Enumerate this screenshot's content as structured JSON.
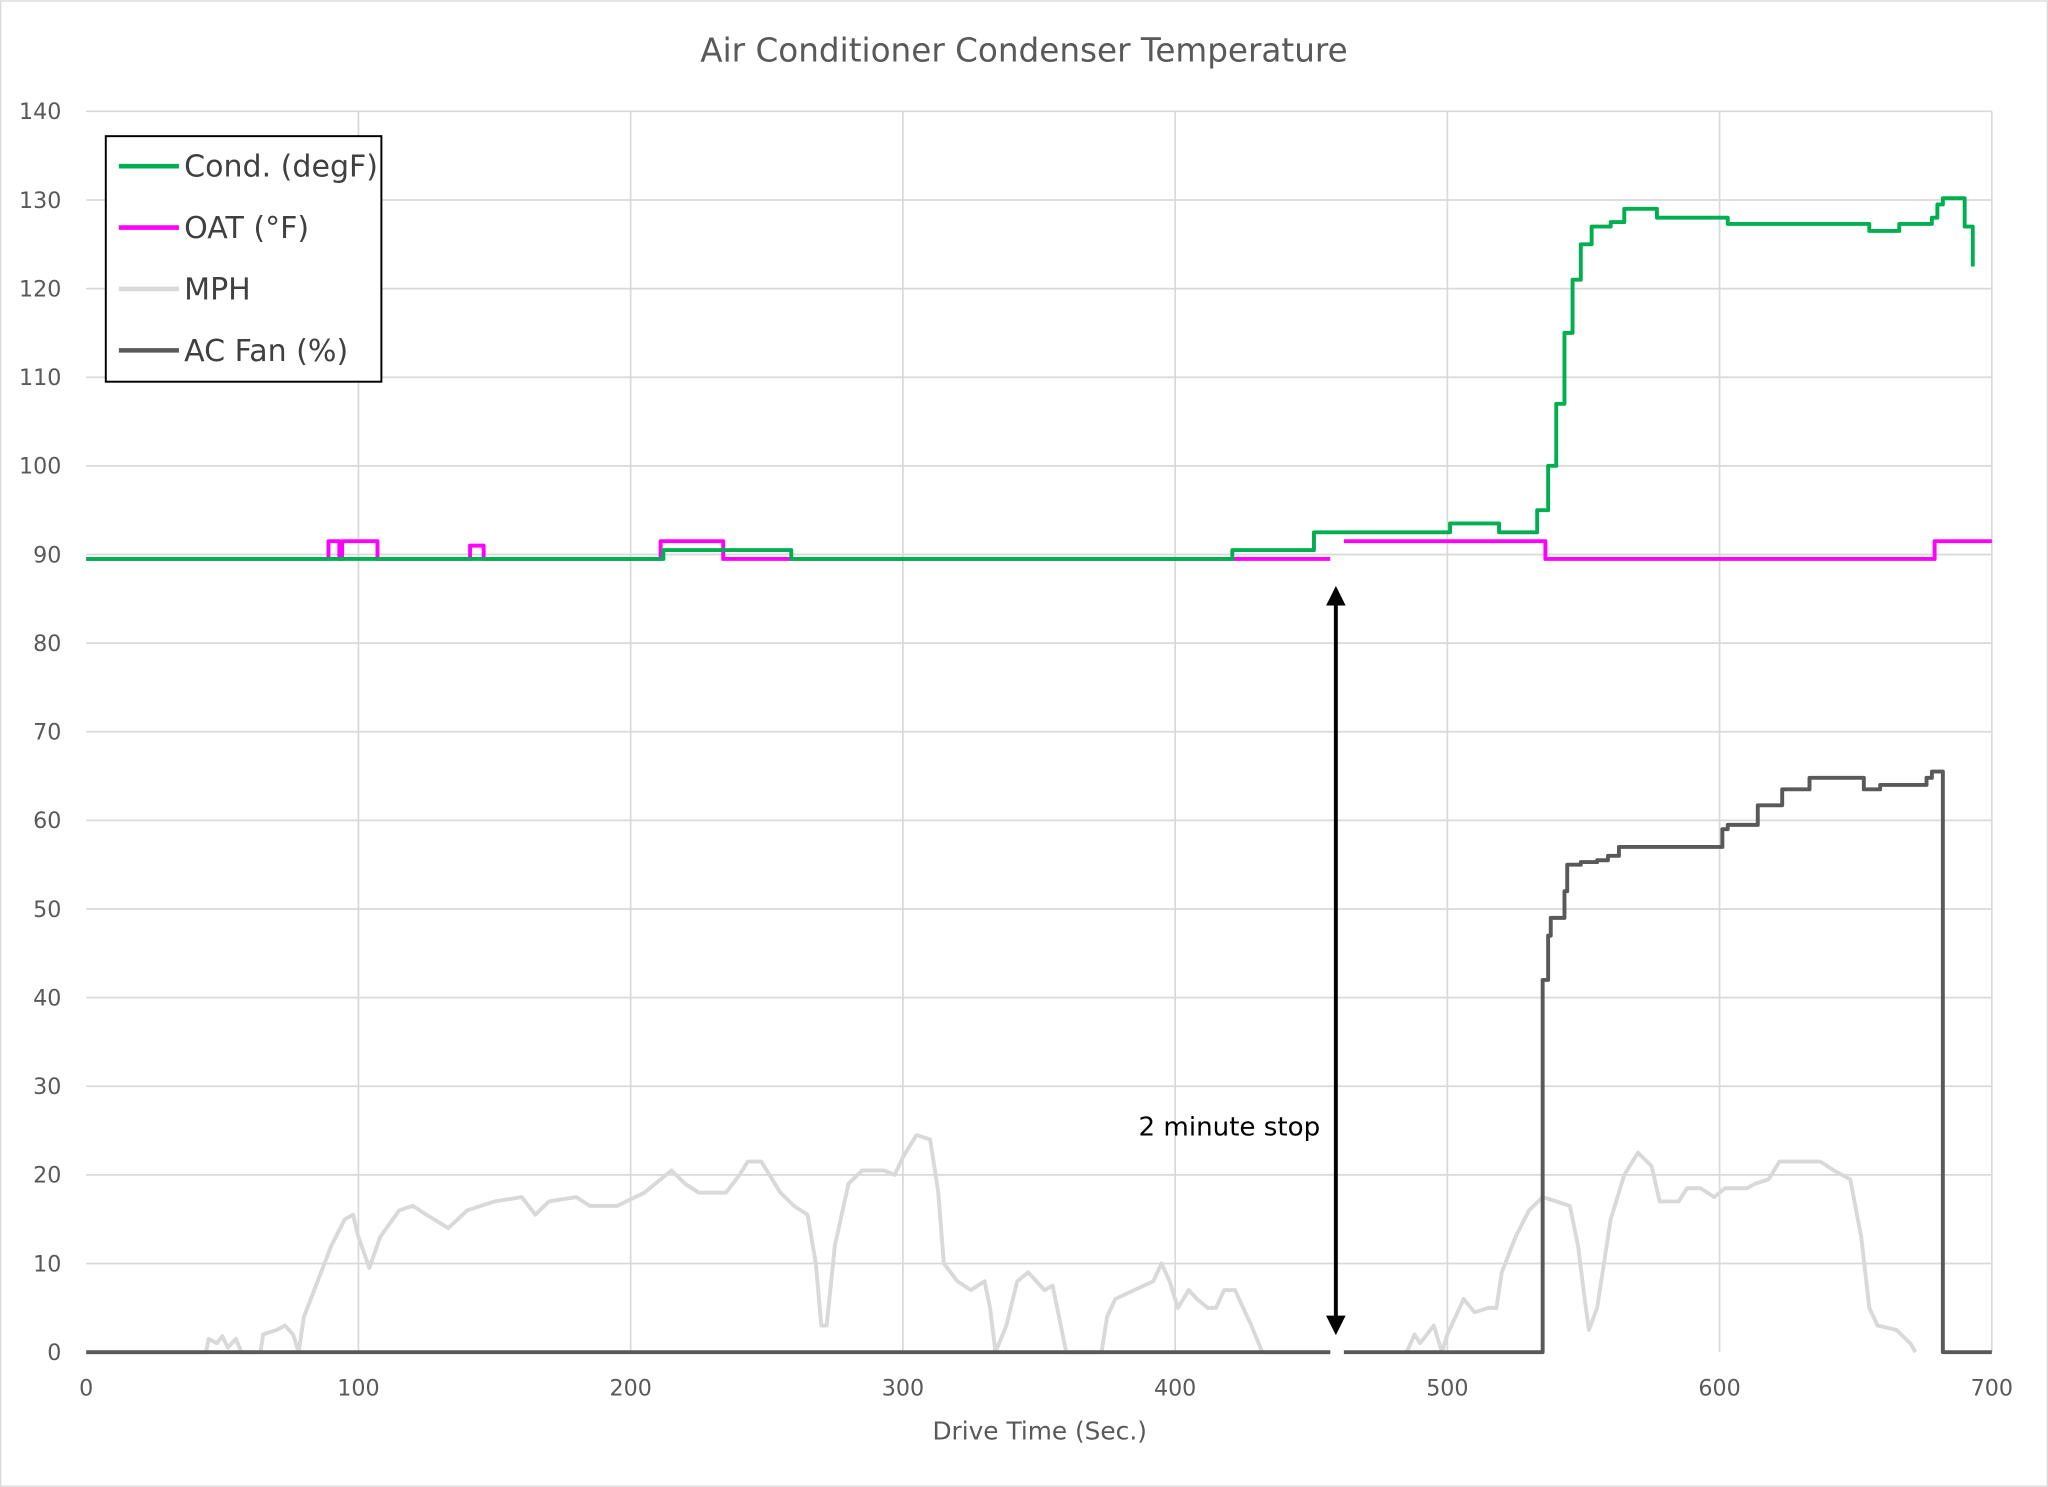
{
  "chart_data": {
    "type": "line",
    "title": "Air Conditioner Condenser Temperature",
    "xlabel": "Drive Time (Sec.)",
    "ylabel": "",
    "xlim": [
      0,
      700
    ],
    "ylim": [
      0,
      140
    ],
    "xticks": [
      0,
      100,
      200,
      300,
      400,
      500,
      600,
      700
    ],
    "yticks": [
      0,
      10,
      20,
      30,
      40,
      50,
      60,
      70,
      80,
      90,
      100,
      110,
      120,
      130,
      140
    ],
    "grid": true,
    "legend_position": "top-left",
    "annotation": {
      "text": "2 minute stop",
      "x": 460,
      "y_from": 0,
      "y_to": 86
    },
    "series": [
      {
        "name": "Cond. (degF)",
        "color": "#00B050",
        "step": true,
        "points": [
          [
            0,
            89.5
          ],
          [
            210,
            89.5
          ],
          [
            212,
            90.5
          ],
          [
            258,
            90.5
          ],
          [
            259,
            89.5
          ],
          [
            420,
            89.5
          ],
          [
            421,
            90.5
          ],
          [
            450,
            90.5
          ],
          [
            451,
            92.5
          ],
          [
            500,
            92.5
          ],
          [
            501,
            93.5
          ],
          [
            518,
            93.5
          ],
          [
            519,
            92.5
          ],
          [
            530,
            92.5
          ],
          [
            533,
            95
          ],
          [
            537,
            100
          ],
          [
            540,
            107
          ],
          [
            543,
            115
          ],
          [
            546,
            121
          ],
          [
            549,
            125
          ],
          [
            553,
            127
          ],
          [
            560,
            127.5
          ],
          [
            565,
            129
          ],
          [
            575,
            129
          ],
          [
            577,
            128
          ],
          [
            590,
            128
          ],
          [
            600,
            128
          ],
          [
            603,
            127.3
          ],
          [
            645,
            127.3
          ],
          [
            655,
            126.5
          ],
          [
            665,
            126.5
          ],
          [
            666,
            127.3
          ],
          [
            677,
            127.3
          ],
          [
            678,
            128
          ],
          [
            680,
            129.5
          ],
          [
            682,
            130.2
          ],
          [
            686,
            130.2
          ],
          [
            690,
            127
          ],
          [
            693,
            122.5
          ]
        ]
      },
      {
        "name": "OAT (°F)",
        "color": "#FF00FF",
        "step": true,
        "points": [
          [
            0,
            89.5
          ],
          [
            88,
            89.5
          ],
          [
            89,
            91.5
          ],
          [
            92,
            91.5
          ],
          [
            93,
            89.5
          ],
          [
            94,
            91.5
          ],
          [
            106,
            91.5
          ],
          [
            107,
            89.5
          ],
          [
            140,
            89.5
          ],
          [
            141,
            91
          ],
          [
            145,
            91
          ],
          [
            146,
            89.5
          ],
          [
            210,
            89.5
          ],
          [
            211,
            91.5
          ],
          [
            233,
            91.5
          ],
          [
            234,
            89.5
          ],
          [
            457,
            89.5
          ],
          null,
          [
            462,
            91.5
          ],
          [
            535,
            91.5
          ],
          [
            536,
            89.5
          ],
          [
            678,
            89.5
          ],
          [
            679,
            91.5
          ],
          [
            700,
            91.5
          ]
        ]
      },
      {
        "name": "MPH",
        "color": "#D9D9D9",
        "step": false,
        "points": [
          [
            0,
            0
          ],
          [
            44,
            0
          ],
          [
            45,
            1.5
          ],
          [
            48,
            1
          ],
          [
            50,
            1.8
          ],
          [
            52,
            0.5
          ],
          [
            55,
            1.5
          ],
          [
            57,
            0
          ],
          [
            64,
            0
          ],
          [
            65,
            2
          ],
          [
            70,
            2.5
          ],
          [
            73,
            3
          ],
          [
            76,
            2
          ],
          [
            78,
            0
          ],
          [
            80,
            4
          ],
          [
            85,
            8
          ],
          [
            90,
            12
          ],
          [
            95,
            15
          ],
          [
            98,
            15.5
          ],
          [
            100,
            13
          ],
          [
            104,
            9.5
          ],
          [
            108,
            13
          ],
          [
            115,
            16
          ],
          [
            120,
            16.5
          ],
          [
            125,
            15.5
          ],
          [
            133,
            14
          ],
          [
            140,
            16
          ],
          [
            150,
            17
          ],
          [
            160,
            17.5
          ],
          [
            165,
            15.5
          ],
          [
            170,
            17
          ],
          [
            180,
            17.5
          ],
          [
            185,
            16.5
          ],
          [
            195,
            16.5
          ],
          [
            205,
            18
          ],
          [
            215,
            20.5
          ],
          [
            220,
            19
          ],
          [
            225,
            18
          ],
          [
            235,
            18
          ],
          [
            240,
            20
          ],
          [
            243,
            21.5
          ],
          [
            248,
            21.5
          ],
          [
            255,
            18
          ],
          [
            260,
            16.5
          ],
          [
            265,
            15.5
          ],
          [
            268,
            10
          ],
          [
            270,
            3
          ],
          [
            272,
            3
          ],
          [
            275,
            12
          ],
          [
            280,
            19
          ],
          [
            285,
            20.5
          ],
          [
            293,
            20.5
          ],
          [
            297,
            20
          ],
          [
            300,
            22
          ],
          [
            305,
            24.5
          ],
          [
            310,
            24
          ],
          [
            313,
            18
          ],
          [
            315,
            10
          ],
          [
            320,
            8
          ],
          [
            325,
            7
          ],
          [
            330,
            8
          ],
          [
            332,
            5
          ],
          [
            334,
            0
          ],
          [
            338,
            3
          ],
          [
            342,
            8
          ],
          [
            346,
            9
          ],
          [
            352,
            7
          ],
          [
            355,
            7.5
          ],
          [
            358,
            3
          ],
          [
            360,
            0
          ],
          [
            373,
            0
          ],
          [
            375,
            4
          ],
          [
            378,
            6
          ],
          [
            385,
            7
          ],
          [
            392,
            8
          ],
          [
            395,
            10
          ],
          [
            398,
            8
          ],
          [
            401,
            5
          ],
          [
            405,
            7
          ],
          [
            408,
            6
          ],
          [
            412,
            5
          ],
          [
            415,
            5
          ],
          [
            418,
            7
          ],
          [
            422,
            7
          ],
          [
            425,
            5
          ],
          [
            428,
            3
          ],
          [
            432,
            0
          ],
          [
            457,
            0
          ],
          null,
          [
            485,
            0
          ],
          [
            488,
            2
          ],
          [
            490,
            1
          ],
          [
            495,
            3
          ],
          [
            498,
            0
          ],
          [
            500,
            2
          ],
          [
            503,
            4
          ],
          [
            506,
            6
          ],
          [
            510,
            4.5
          ],
          [
            515,
            5
          ],
          [
            518,
            5
          ],
          [
            520,
            9
          ],
          [
            525,
            13
          ],
          [
            530,
            16
          ],
          [
            535,
            17.5
          ],
          [
            540,
            17
          ],
          [
            545,
            16.5
          ],
          [
            548,
            12
          ],
          [
            550,
            7
          ],
          [
            552,
            2.5
          ],
          [
            555,
            5
          ],
          [
            560,
            15
          ],
          [
            565,
            20
          ],
          [
            570,
            22.5
          ],
          [
            575,
            21
          ],
          [
            578,
            17
          ],
          [
            585,
            17
          ],
          [
            588,
            18.5
          ],
          [
            593,
            18.5
          ],
          [
            598,
            17.5
          ],
          [
            602,
            18.5
          ],
          [
            610,
            18.5
          ],
          [
            613,
            19
          ],
          [
            618,
            19.5
          ],
          [
            622,
            21.5
          ],
          [
            637,
            21.5
          ],
          [
            642,
            20.5
          ],
          [
            648,
            19.5
          ],
          [
            652,
            13
          ],
          [
            655,
            5
          ],
          [
            658,
            3
          ],
          [
            665,
            2.5
          ],
          [
            670,
            1
          ],
          [
            672,
            0
          ]
        ]
      },
      {
        "name": "AC Fan (%)",
        "color": "#595959",
        "step": true,
        "points": [
          [
            0,
            0
          ],
          [
            457,
            0
          ],
          null,
          [
            462,
            0
          ],
          [
            535,
            0
          ],
          [
            535,
            42
          ],
          [
            537,
            47
          ],
          [
            538,
            49
          ],
          [
            542,
            49
          ],
          [
            543,
            52
          ],
          [
            544,
            55
          ],
          [
            547,
            55
          ],
          [
            549,
            55.3
          ],
          [
            555,
            55.5
          ],
          [
            559,
            56
          ],
          [
            563,
            57
          ],
          [
            600,
            57
          ],
          [
            601,
            59
          ],
          [
            603,
            59.5
          ],
          [
            613,
            59.5
          ],
          [
            614,
            61.7
          ],
          [
            622,
            61.7
          ],
          [
            623,
            63.5
          ],
          [
            632,
            63.5
          ],
          [
            633,
            64.8
          ],
          [
            652,
            64.8
          ],
          [
            653,
            63.5
          ],
          [
            658,
            63.5
          ],
          [
            659,
            64
          ],
          [
            675,
            64
          ],
          [
            676,
            64.8
          ],
          [
            678,
            65.5
          ],
          [
            682,
            65.5
          ],
          [
            682,
            0
          ],
          [
            700,
            0
          ]
        ]
      }
    ]
  }
}
